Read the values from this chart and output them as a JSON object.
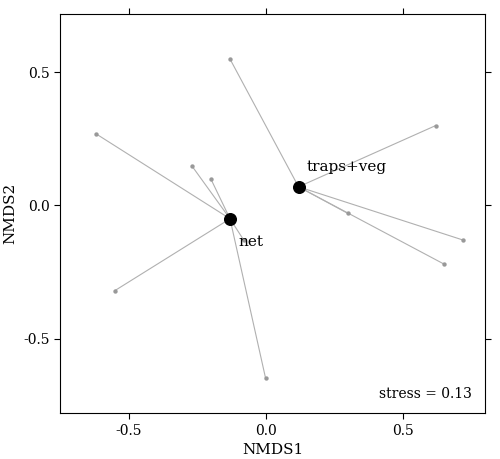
{
  "xlabel": "NMDS1",
  "ylabel": "NMDS2",
  "stress_text": "stress = 0.13",
  "xlim": [
    -0.75,
    0.8
  ],
  "ylim": [
    -0.78,
    0.72
  ],
  "xticks": [
    -0.5,
    0.0,
    0.5
  ],
  "yticks": [
    -0.5,
    0.0,
    0.5
  ],
  "centroid_net": [
    -0.13,
    -0.05
  ],
  "centroid_trapsveg": [
    0.12,
    0.07
  ],
  "label_net": "net",
  "label_trapsveg": "traps+veg",
  "net_samples": [
    [
      -0.62,
      0.27
    ],
    [
      -0.27,
      0.15
    ],
    [
      -0.2,
      0.1
    ],
    [
      -0.55,
      -0.32
    ],
    [
      0.0,
      -0.65
    ],
    [
      -0.08,
      -0.13
    ]
  ],
  "trapsveg_samples": [
    [
      -0.13,
      0.55
    ],
    [
      0.62,
      0.3
    ],
    [
      0.3,
      -0.03
    ],
    [
      0.72,
      -0.13
    ],
    [
      0.65,
      -0.22
    ]
  ],
  "line_color": "#b0b0b0",
  "centroid_color": "black",
  "sample_color": "#999999",
  "centroid_size": 70,
  "sample_size": 10,
  "line_width": 0.8,
  "font_family": "DejaVu Serif",
  "label_fontsize": 11,
  "tick_fontsize": 10,
  "stress_fontsize": 10,
  "annotation_fontsize": 11
}
